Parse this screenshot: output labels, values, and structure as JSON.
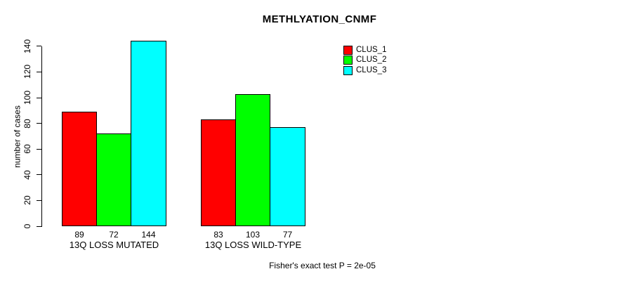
{
  "chart_data": {
    "type": "bar",
    "title": "METHLYATION_CNMF",
    "ylabel": "number of cases",
    "categories": [
      "13Q LOSS MUTATED",
      "13Q LOSS WILD-TYPE"
    ],
    "series": [
      {
        "name": "CLUS_1",
        "color": "#ff0000",
        "values": [
          89,
          83
        ]
      },
      {
        "name": "CLUS_2",
        "color": "#00ff00",
        "values": [
          72,
          103
        ]
      },
      {
        "name": "CLUS_3",
        "color": "#00ffff",
        "values": [
          144,
          77
        ]
      }
    ],
    "yticks": [
      0,
      20,
      40,
      60,
      80,
      100,
      120,
      140
    ],
    "ylim": [
      0,
      144
    ],
    "legend_position": "top-right",
    "grid": false,
    "annotation": "Fisher's exact test P = 2e-05",
    "background_color": "#ffffff",
    "bar_border_color": "#000000",
    "text_color": "#000000"
  }
}
